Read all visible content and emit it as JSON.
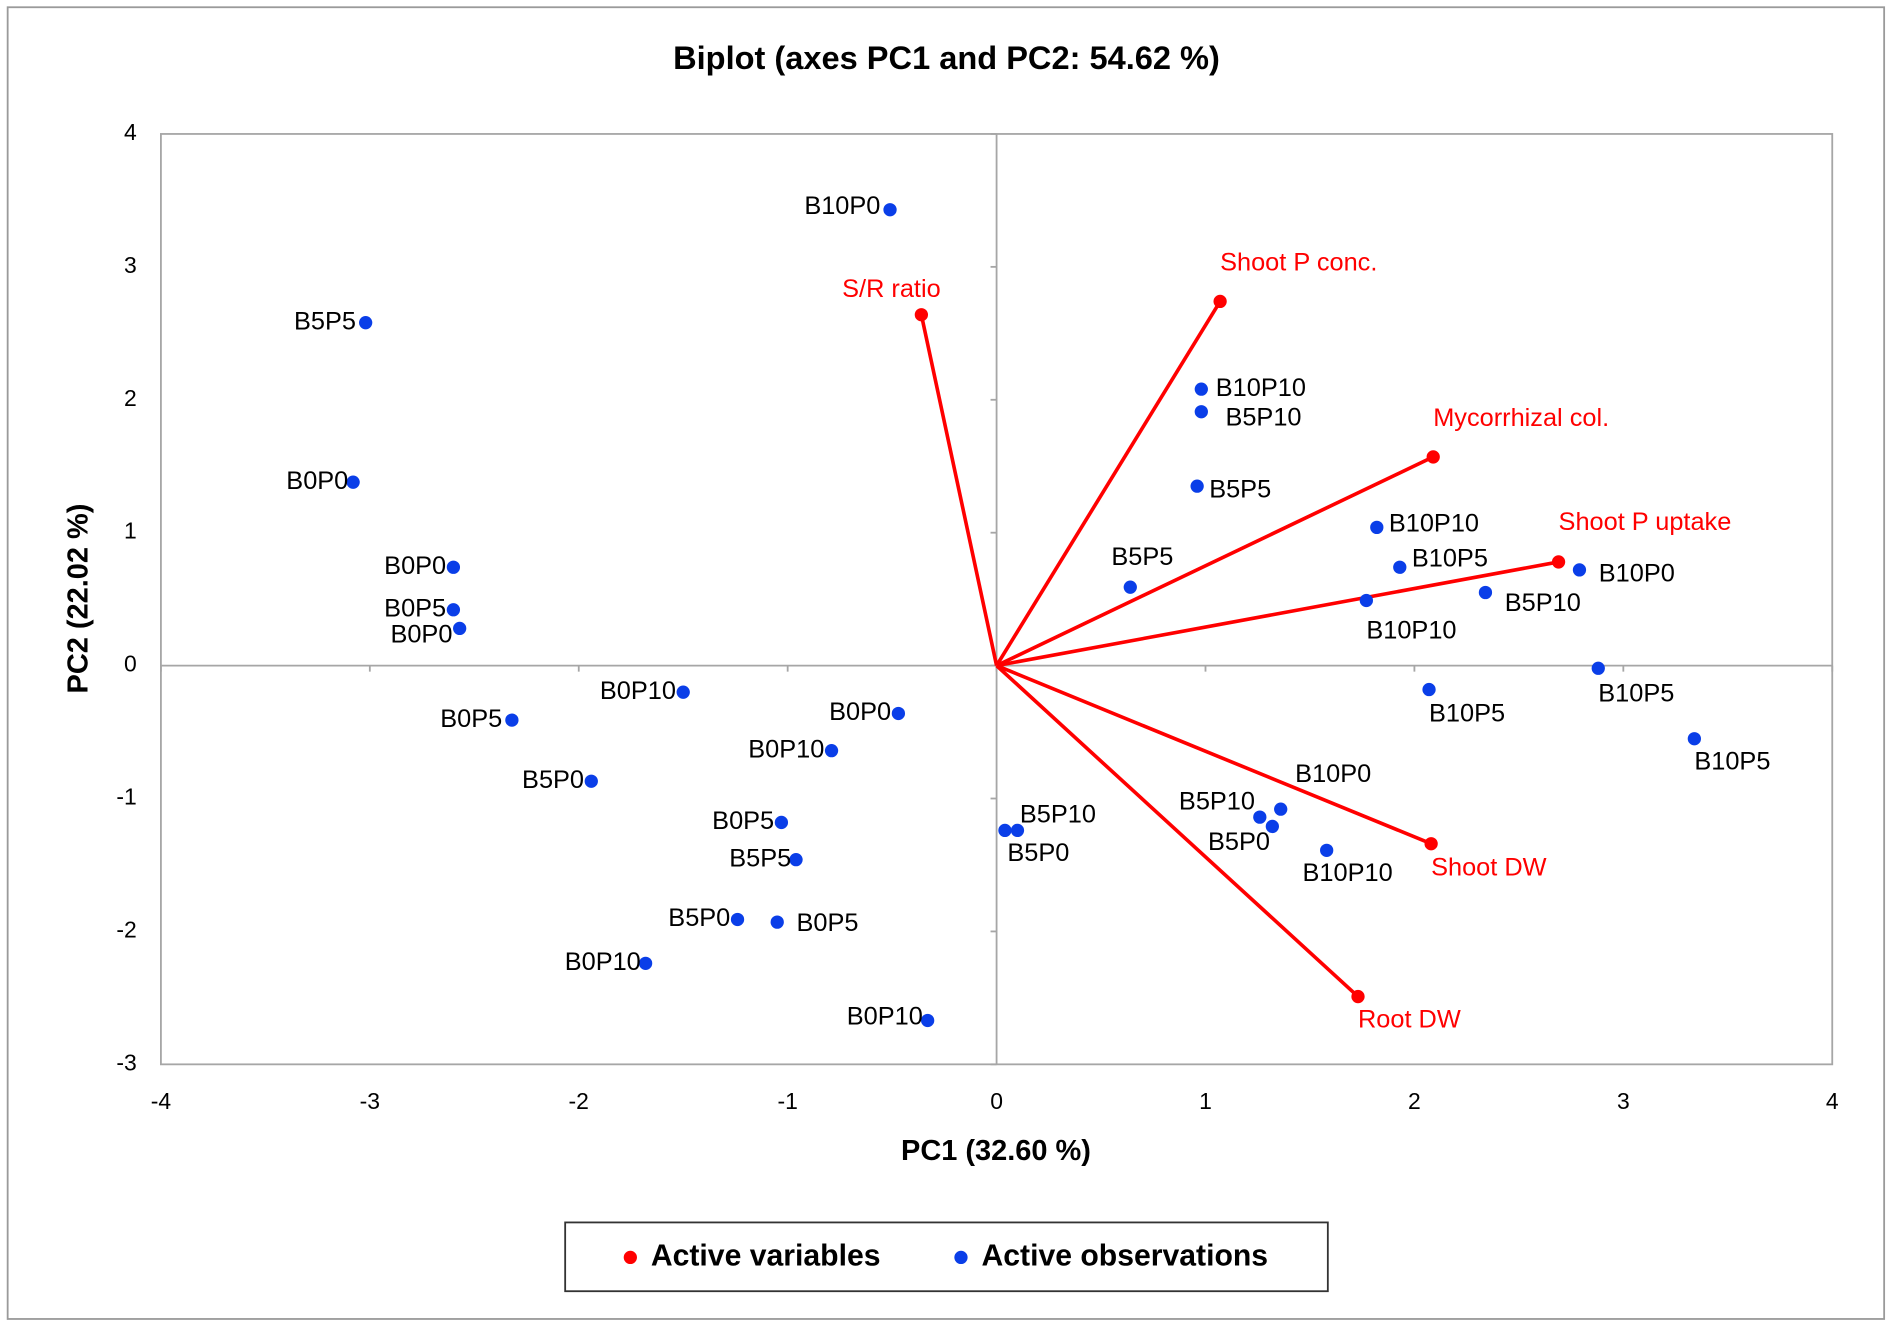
{
  "chart_data": {
    "type": "scatter",
    "title": "Biplot (axes PC1 and PC2: 54.62 %)",
    "x_label": "PC1 (32.60 %)",
    "y_label": "PC2 (22.02 %)",
    "xlim": [
      -4,
      4
    ],
    "ylim": [
      -3,
      4
    ],
    "xticks": [
      -4,
      -3,
      -2,
      -1,
      0,
      1,
      2,
      3,
      4
    ],
    "yticks": [
      -3,
      -2,
      -1,
      0,
      1,
      2,
      3,
      4
    ],
    "grid": false,
    "legend": "bottom",
    "series": [
      {
        "name": "Active variables",
        "color": "#ff0000",
        "labels": [
          "S/R ratio",
          "Shoot P conc.",
          "Mycorrhizal col.",
          "Shoot P uptake",
          "Shoot DW",
          "Root DW"
        ],
        "x": [
          -0.36,
          1.07,
          2.09,
          2.69,
          2.08,
          1.73
        ],
        "y": [
          2.64,
          2.74,
          1.57,
          0.78,
          -1.34,
          -2.49
        ]
      },
      {
        "name": "Active observations",
        "color": "#0a3ee8",
        "labels": [
          "B10P0",
          "B5P5",
          "B0P0",
          "B0P0",
          "B0P5",
          "B0P0",
          "B0P10",
          "B0P5",
          "B5P0",
          "B0P0",
          "B0P10",
          "B0P5",
          "B5P5",
          "B5P0",
          "B0P5",
          "B0P10",
          "B0P10",
          "B5P10",
          "B5P0",
          "B10P10",
          "B5P10",
          "B5P5",
          "B5P5",
          "B10P10",
          "B10P5",
          "B10P10",
          "B5P10",
          "B10P0",
          "B10P5",
          "B10P5",
          "B10P5",
          "B10P0",
          "B5P10",
          "B5P0",
          "B10P10"
        ],
        "x": [
          -0.51,
          -3.02,
          -3.08,
          -2.6,
          -2.6,
          -2.57,
          -1.5,
          -2.32,
          -1.94,
          -0.47,
          -0.79,
          -1.03,
          -0.96,
          -1.24,
          -1.05,
          -1.68,
          -0.33,
          0.1,
          0.04,
          0.98,
          0.98,
          0.96,
          0.64,
          1.82,
          1.93,
          1.77,
          2.34,
          2.79,
          2.88,
          2.07,
          3.34,
          1.36,
          1.26,
          1.32,
          1.58
        ],
        "y": [
          3.43,
          2.58,
          1.38,
          0.74,
          0.42,
          0.28,
          -0.2,
          -0.41,
          -0.87,
          -0.36,
          -0.64,
          -1.18,
          -1.46,
          -1.91,
          -1.93,
          -2.24,
          -2.67,
          -1.24,
          -1.24,
          2.08,
          1.91,
          1.35,
          0.59,
          1.04,
          0.74,
          0.49,
          0.55,
          0.72,
          -0.02,
          -0.18,
          -0.55,
          -1.08,
          -1.14,
          -1.21,
          -1.39
        ]
      }
    ]
  }
}
